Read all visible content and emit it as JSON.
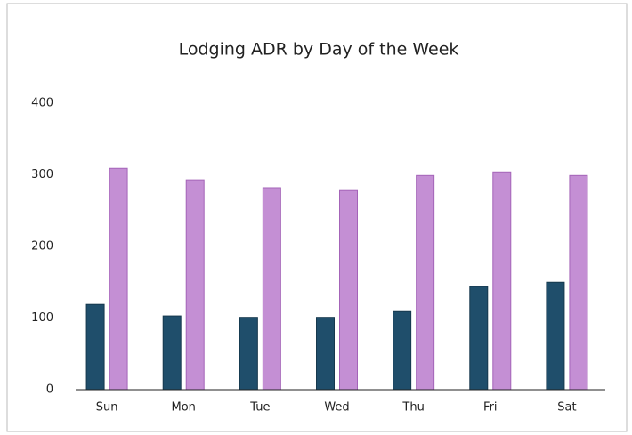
{
  "chart_data": {
    "type": "bar",
    "title": "Lodging ADR by Day of the Week",
    "categories": [
      "Sun",
      "Mon",
      "Tue",
      "Wed",
      "Thu",
      "Fri",
      "Sat"
    ],
    "series": [
      {
        "color": "#1f4e6b",
        "values": [
          119,
          103,
          101,
          101,
          109,
          144,
          150
        ]
      },
      {
        "color": "#c48fd4",
        "values": [
          309,
          293,
          282,
          278,
          299,
          304,
          299
        ]
      }
    ],
    "ylim": [
      0,
      400
    ],
    "yticks": [
      0,
      100,
      200,
      300,
      400
    ],
    "grid": false
  }
}
